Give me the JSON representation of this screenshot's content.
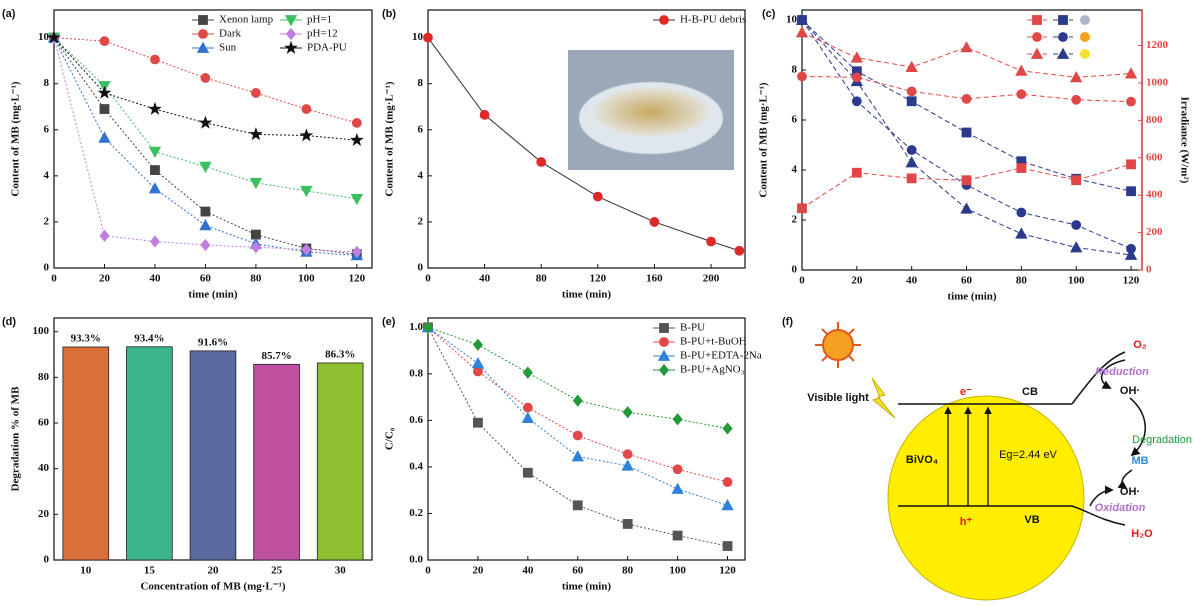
{
  "chart_data": [
    {
      "type": "line",
      "panel_label": "(a)",
      "x_label": "time (min)",
      "y_label": "Content of MB (mg·L⁻¹)",
      "x": [
        0,
        20,
        40,
        60,
        80,
        100,
        120
      ],
      "xlim": [
        0,
        126
      ],
      "xticks": [
        0,
        20,
        40,
        60,
        80,
        100,
        120
      ],
      "ylim": [
        0,
        11.2
      ],
      "yticks": [
        0,
        2,
        4,
        6,
        8,
        10
      ],
      "line_style": "dotted",
      "legend": "upper right",
      "series": [
        {
          "name": "Xenon lamp",
          "color": "#444444",
          "marker": "square",
          "values": [
            10,
            6.9,
            4.25,
            2.45,
            1.45,
            0.85,
            0.6
          ]
        },
        {
          "name": "Dark",
          "color": "#e04848",
          "marker": "circle",
          "values": [
            10,
            9.85,
            9.05,
            8.25,
            7.6,
            6.9,
            6.3
          ]
        },
        {
          "name": "Sun",
          "color": "#2f72d0",
          "marker": "triangle",
          "values": [
            10,
            5.65,
            3.45,
            1.85,
            1.05,
            0.7,
            0.55
          ]
        },
        {
          "name": "pH=1",
          "color": "#3cbf60",
          "marker": "triangle-down",
          "values": [
            10,
            7.9,
            5.05,
            4.4,
            3.7,
            3.35,
            3.0
          ]
        },
        {
          "name": "pH=12",
          "color": "#c07ee0",
          "marker": "diamond",
          "values": [
            10,
            1.4,
            1.15,
            1.0,
            0.9,
            0.8,
            0.7
          ]
        },
        {
          "name": "PDA-PU",
          "color": "#111111",
          "marker": "star",
          "values": [
            10,
            7.6,
            6.9,
            6.3,
            5.8,
            5.75,
            5.55
          ]
        }
      ]
    },
    {
      "type": "line",
      "panel_label": "(b)",
      "x_label": "time (min)",
      "y_label": "Content of MB (mg·L⁻¹)",
      "x": [
        0,
        40,
        80,
        120,
        160,
        200,
        220
      ],
      "xlim": [
        0,
        224
      ],
      "xticks": [
        0,
        40,
        80,
        120,
        160,
        200
      ],
      "ylim": [
        0,
        11.2
      ],
      "yticks": [
        0,
        2,
        4,
        6,
        8,
        10
      ],
      "line_style": "solid",
      "line_color": "#333333",
      "legend": "upper right",
      "series": [
        {
          "name": "H-B-PU debris",
          "color": "#e02828",
          "marker": "circle",
          "values": [
            10,
            6.65,
            4.6,
            3.1,
            2.0,
            1.15,
            0.75
          ]
        }
      ]
    },
    {
      "type": "line",
      "panel_label": "(c)",
      "x_label": "time (min)",
      "y_label": "Content of MB (mg·L⁻¹)",
      "y2_label": "Irradiance (W/m²)",
      "x": [
        0,
        20,
        40,
        60,
        80,
        100,
        120
      ],
      "xlim": [
        0,
        124
      ],
      "xticks": [
        0,
        20,
        40,
        60,
        80,
        100,
        120
      ],
      "ylim": [
        0,
        10.4
      ],
      "yticks": [
        0,
        2,
        4,
        6,
        8,
        10
      ],
      "y2lim": [
        0,
        1390
      ],
      "y2ticks": [
        0,
        200,
        400,
        600,
        800,
        1000,
        1200
      ],
      "y2_color": "#e04848",
      "line_style": "dashed",
      "legend": "upper right",
      "series": [
        {
          "color": "#2b3a8c",
          "marker": "square",
          "values": [
            10,
            7.95,
            6.75,
            5.5,
            4.35,
            3.65,
            3.15
          ]
        },
        {
          "color": "#2b3a8c",
          "marker": "circle",
          "values": [
            10,
            6.75,
            4.8,
            3.4,
            2.3,
            1.8,
            0.85
          ]
        },
        {
          "color": "#2b3a8c",
          "marker": "triangle",
          "values": [
            10,
            7.55,
            4.3,
            2.45,
            1.45,
            0.9,
            0.6
          ]
        },
        {
          "color": "#e04848",
          "marker": "square",
          "axis": "y2",
          "values": [
            330,
            520,
            490,
            480,
            545,
            480,
            565
          ]
        },
        {
          "color": "#e04848",
          "marker": "circle",
          "axis": "y2",
          "values": [
            1035,
            1030,
            955,
            915,
            940,
            910,
            900
          ]
        },
        {
          "color": "#e04848",
          "marker": "triangle",
          "axis": "y2",
          "values": [
            1270,
            1135,
            1085,
            1190,
            1065,
            1030,
            1050
          ]
        }
      ]
    },
    {
      "type": "bar",
      "panel_label": "(d)",
      "x_label": "Concentration of MB (mg·L⁻¹)",
      "y_label": "Degradation % of MB",
      "categories": [
        "10",
        "15",
        "20",
        "25",
        "30"
      ],
      "values": [
        93.3,
        93.4,
        91.6,
        85.7,
        86.3
      ],
      "value_labels": [
        "93.3%",
        "93.4%",
        "91.6%",
        "85.7%",
        "86.3%"
      ],
      "colors": [
        "#d9703a",
        "#3ab58a",
        "#5a6aa0",
        "#c050a0",
        "#8cc030"
      ],
      "ylim": [
        0,
        106
      ],
      "yticks": [
        0,
        20,
        40,
        60,
        80,
        100
      ]
    },
    {
      "type": "line",
      "panel_label": "(e)",
      "x_label": "time (min)",
      "y_label": "C/C₀",
      "x": [
        0,
        20,
        40,
        60,
        80,
        100,
        120
      ],
      "xlim": [
        0,
        127
      ],
      "xticks": [
        0,
        20,
        40,
        60,
        80,
        100,
        120
      ],
      "ylim": [
        0,
        1.04
      ],
      "yticks": [
        {
          "value": 0,
          "label": "0.0"
        },
        0.2,
        0.4,
        0.6,
        0.8,
        {
          "value": 1,
          "label": "1.0"
        }
      ],
      "line_style": "dotted",
      "legend": "upper right",
      "series": [
        {
          "name": "B-PU",
          "color": "#555555",
          "marker": "square",
          "values": [
            1,
            0.59,
            0.375,
            0.235,
            0.155,
            0.105,
            0.06
          ]
        },
        {
          "name": "B-PU+t-BuOH",
          "color": "#e04848",
          "marker": "circle",
          "values": [
            1,
            0.81,
            0.655,
            0.535,
            0.455,
            0.39,
            0.335
          ]
        },
        {
          "name": "B-PU+EDTA-2Na",
          "color": "#2f82d8",
          "marker": "triangle",
          "values": [
            1,
            0.845,
            0.61,
            0.445,
            0.405,
            0.305,
            0.235
          ]
        },
        {
          "name": "B-PU+AgNO₃",
          "color": "#229a3a",
          "marker": "diamond",
          "values": [
            1,
            0.925,
            0.805,
            0.685,
            0.635,
            0.605,
            0.565
          ]
        }
      ]
    }
  ],
  "diagram": {
    "panel_label": "(f)",
    "light": "Visible light",
    "material": "BiVO₄",
    "electron": "e⁻",
    "hole": "h⁺",
    "cb": "CB",
    "vb": "VB",
    "gap": "Eg=2.44 eV",
    "o2": "O₂",
    "reduction": "Reduction",
    "oh_top": "OH·",
    "degradation": "Degradation",
    "mb": "MB",
    "oh_bottom": "OH·",
    "oxidation": "Oxidation",
    "h2o": "H₂O"
  }
}
